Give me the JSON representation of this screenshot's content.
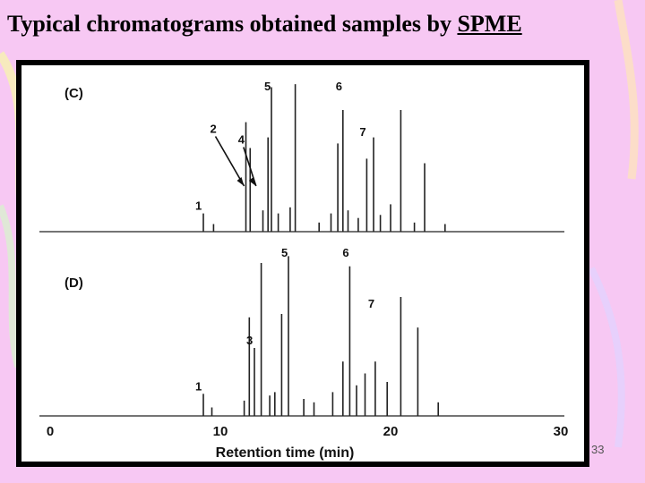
{
  "slide": {
    "title_main": "Typical chromatograms obtained samples by ",
    "title_underlined": "SPME",
    "page_number": "33"
  },
  "colors": {
    "background": "#f7c8f3",
    "frame": "#000000",
    "plot_background": "#ffffff",
    "trace": "#222222"
  },
  "chart_data": {
    "type": "line",
    "xlabel": "Retention time (min)",
    "xlim": [
      0,
      30
    ],
    "x_ticks": [
      "0",
      "10",
      "20",
      "30"
    ],
    "panels": [
      {
        "label": "(C)",
        "peaks": [
          {
            "rt": 9.0,
            "height": 0.12,
            "label": "1"
          },
          {
            "rt": 9.6,
            "height": 0.05
          },
          {
            "rt": 11.5,
            "height": 0.72
          },
          {
            "rt": 11.75,
            "height": 0.55
          },
          {
            "rt": 12.5,
            "height": 0.14
          },
          {
            "rt": 12.8,
            "height": 0.62
          },
          {
            "rt": 13.0,
            "height": 0.95
          },
          {
            "rt": 13.4,
            "height": 0.12
          },
          {
            "rt": 14.1,
            "height": 0.16
          },
          {
            "rt": 14.4,
            "height": 0.97
          },
          {
            "rt": 15.8,
            "height": 0.06
          },
          {
            "rt": 16.5,
            "height": 0.12
          },
          {
            "rt": 16.9,
            "height": 0.58
          },
          {
            "rt": 17.2,
            "height": 0.8
          },
          {
            "rt": 17.5,
            "height": 0.14
          },
          {
            "rt": 18.1,
            "height": 0.09
          },
          {
            "rt": 18.6,
            "height": 0.48
          },
          {
            "rt": 19.0,
            "height": 0.62
          },
          {
            "rt": 19.4,
            "height": 0.11
          },
          {
            "rt": 20.0,
            "height": 0.18
          },
          {
            "rt": 20.6,
            "height": 0.8
          },
          {
            "rt": 21.4,
            "height": 0.06
          },
          {
            "rt": 22.0,
            "height": 0.45
          },
          {
            "rt": 23.2,
            "height": 0.05
          }
        ],
        "annotations": [
          {
            "text": "2",
            "arrow_to_rt": 11.5
          },
          {
            "text": "4",
            "arrow_to_rt": 12.2
          },
          {
            "text": "5",
            "rt": 13.0
          },
          {
            "text": "6",
            "rt": 17.2
          },
          {
            "text": "7",
            "rt": 18.6
          }
        ]
      },
      {
        "label": "(D)",
        "peaks": [
          {
            "rt": 9.0,
            "height": 0.13,
            "label": "1"
          },
          {
            "rt": 9.5,
            "height": 0.05
          },
          {
            "rt": 11.4,
            "height": 0.09
          },
          {
            "rt": 11.7,
            "height": 0.58
          },
          {
            "rt": 12.0,
            "height": 0.4,
            "label": "3"
          },
          {
            "rt": 12.4,
            "height": 0.9
          },
          {
            "rt": 12.9,
            "height": 0.12
          },
          {
            "rt": 13.2,
            "height": 0.14
          },
          {
            "rt": 13.6,
            "height": 0.6
          },
          {
            "rt": 14.0,
            "height": 0.94
          },
          {
            "rt": 14.9,
            "height": 0.1
          },
          {
            "rt": 15.5,
            "height": 0.08
          },
          {
            "rt": 16.6,
            "height": 0.14
          },
          {
            "rt": 17.2,
            "height": 0.32
          },
          {
            "rt": 17.6,
            "height": 0.88
          },
          {
            "rt": 18.0,
            "height": 0.18
          },
          {
            "rt": 18.5,
            "height": 0.25
          },
          {
            "rt": 19.1,
            "height": 0.32
          },
          {
            "rt": 19.8,
            "height": 0.2
          },
          {
            "rt": 20.6,
            "height": 0.7
          },
          {
            "rt": 21.6,
            "height": 0.52
          },
          {
            "rt": 22.8,
            "height": 0.08
          }
        ],
        "annotations": [
          {
            "text": "5",
            "rt": 14.0
          },
          {
            "text": "6",
            "rt": 17.6
          },
          {
            "text": "7",
            "rt": 19.1
          }
        ]
      }
    ]
  }
}
